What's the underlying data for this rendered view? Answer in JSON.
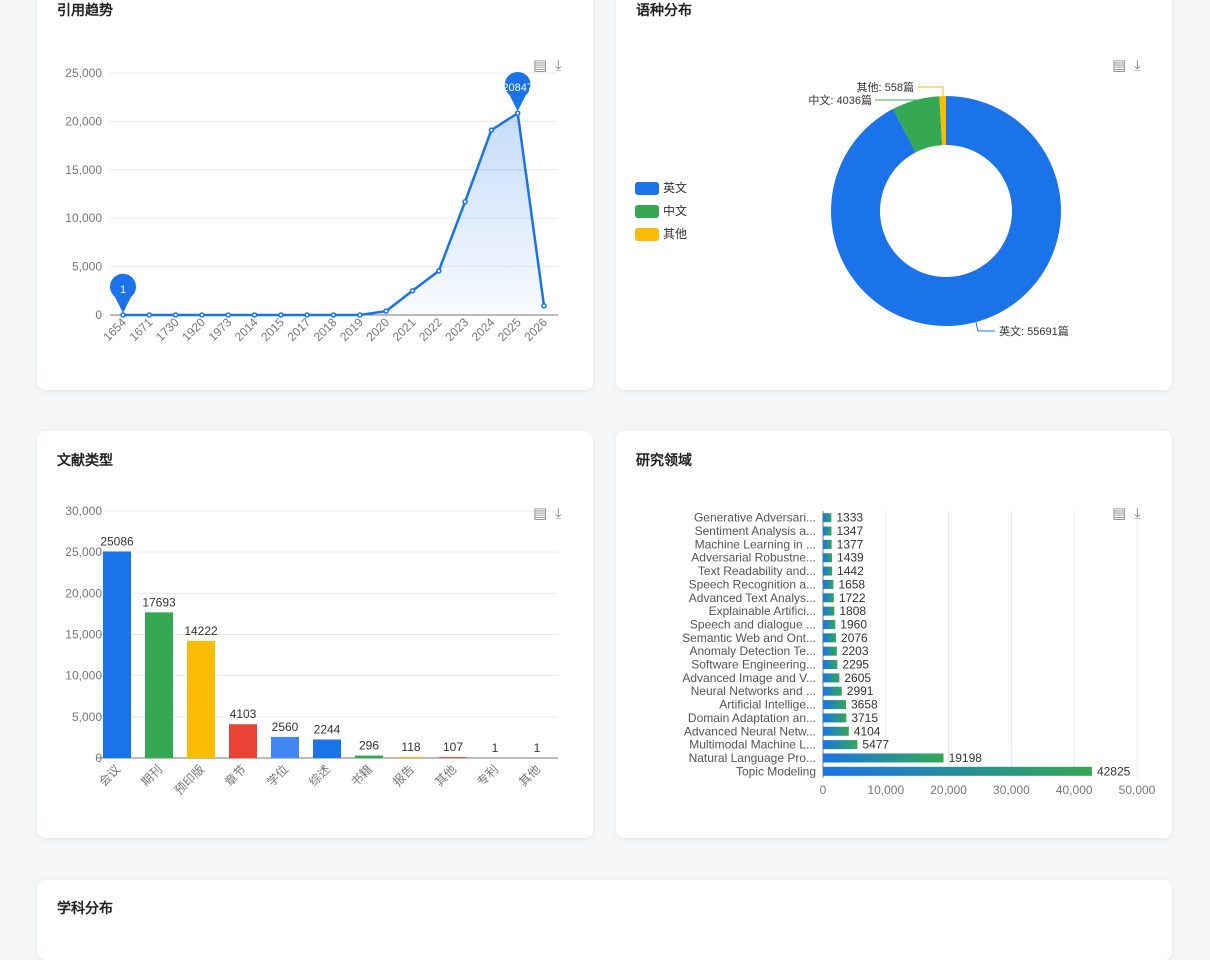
{
  "chart_data": [
    {
      "type": "line",
      "title": "引用趋势",
      "categories": [
        "1654",
        "1671",
        "1730",
        "1920",
        "1973",
        "2014",
        "2015",
        "2017",
        "2018",
        "2019",
        "2020",
        "2021",
        "2022",
        "2023",
        "2024",
        "2025",
        "2026"
      ],
      "values": [
        1,
        1,
        1,
        1,
        1,
        1,
        1,
        1,
        1,
        1,
        400,
        2500,
        4550,
        11700,
        19100,
        20847,
        950
      ],
      "ylim": [
        0,
        25000
      ],
      "yticks": [
        "0",
        "5,000",
        "10,000",
        "15,000",
        "20,000",
        "25,000"
      ],
      "markers": {
        "min": "1",
        "max": "20847"
      },
      "color": "#1a73e8",
      "area": true,
      "grid": true
    },
    {
      "type": "pie",
      "title": "语种分布",
      "donut": true,
      "legend_position": "left",
      "slices": [
        {
          "name": "英文",
          "value": 55691,
          "label": "英文: 55691篇",
          "color": "#1a73e8"
        },
        {
          "name": "中文",
          "value": 4036,
          "label": "中文: 4036篇",
          "color": "#34a853"
        },
        {
          "name": "其他",
          "value": 558,
          "label": "其他: 558篇",
          "color": "#fbbc04"
        }
      ]
    },
    {
      "type": "bar",
      "title": "文献类型",
      "categories": [
        "会议",
        "期刊",
        "预印版",
        "章节",
        "学位",
        "综述",
        "书籍",
        "报告",
        "其他",
        "专利",
        "其他"
      ],
      "values": [
        25086,
        17693,
        14222,
        4103,
        2560,
        2244,
        296,
        118,
        107,
        1,
        1
      ],
      "colors": [
        "#1a73e8",
        "#34a853",
        "#fbbc04",
        "#ea4335",
        "#4285f4",
        "#1a73e8",
        "#34a853",
        "#fbbc04",
        "#ea4335",
        "#4285f4",
        "#1a73e8"
      ],
      "ylim": [
        0,
        30000
      ],
      "yticks": [
        "0",
        "5,000",
        "10,000",
        "15,000",
        "20,000",
        "25,000",
        "30,000"
      ],
      "grid": true
    },
    {
      "type": "bar",
      "orientation": "horizontal",
      "title": "研究领域",
      "categories": [
        "Generative Adversari...",
        "Sentiment Analysis a...",
        "Machine Learning in ...",
        "Adversarial Robustne...",
        "Text Readability and...",
        "Speech Recognition a...",
        "Advanced Text Analys...",
        "Explainable Artifici...",
        "Speech and dialogue ...",
        "Semantic Web and Ont...",
        "Anomaly Detection Te...",
        "Software Engineering...",
        "Advanced Image and V...",
        "Neural Networks and ...",
        "Artificial Intellige...",
        "Domain Adaptation an...",
        "Advanced Neural Netw...",
        "Multimodal Machine L...",
        "Natural Language Pro...",
        "Topic Modeling"
      ],
      "values": [
        1333,
        1347,
        1377,
        1439,
        1442,
        1658,
        1722,
        1808,
        1960,
        2076,
        2203,
        2295,
        2605,
        2991,
        3658,
        3715,
        4104,
        5477,
        19198,
        42825
      ],
      "xlim": [
        0,
        50000
      ],
      "xticks": [
        "0",
        "10,000",
        "20,000",
        "30,000",
        "40,000",
        "50,000"
      ],
      "gradient": [
        "#1a73e8",
        "#34a853"
      ],
      "grid": true
    }
  ],
  "section5": {
    "title": "学科分布"
  },
  "toolbox": {
    "data_view": "data-view-icon",
    "save": "download-icon"
  }
}
